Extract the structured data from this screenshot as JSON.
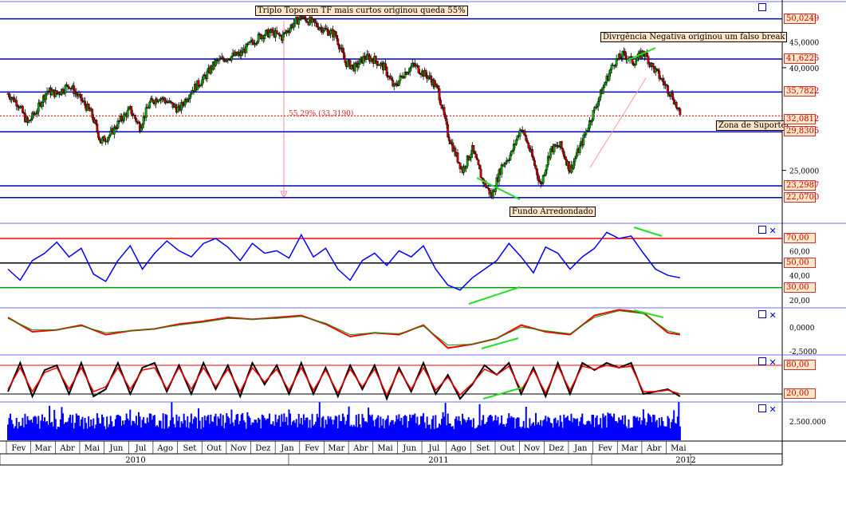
{
  "chart_data": {
    "type": "candlestick",
    "annotations": {
      "triple_top": "Triplo Topo em TF mais curtos originou queda 55%",
      "divergence": "Divrgência Negativa originou um falso break",
      "support_zone": "Zona de Suporte",
      "rounded_bottom": "Fundo Arredondado",
      "drop_pct": "55,29% (33,3190)"
    },
    "price_panel": {
      "y_scale": "log",
      "y_range": [
        20.5,
        52
      ],
      "horizontal_levels": [
        50.0249,
        41.6225,
        35.7822,
        29.8305,
        23.2987,
        22.07
      ],
      "level_labels": [
        "50,0249",
        "41,6225",
        "35,7822",
        "29,8305",
        "23,2987",
        "22,0700"
      ],
      "dotted_level": 32.0812,
      "dotted_label": "32,0812",
      "axis_ticks": [
        45,
        40,
        25
      ],
      "axis_tick_labels": [
        "45,0000",
        "40,0000",
        "25,0000"
      ],
      "close_series": {
        "x_months": [
          0.0,
          0.4,
          0.8,
          1.2,
          1.6,
          2.0,
          2.5,
          3.0,
          3.4,
          3.8,
          4.2,
          4.6,
          5.0,
          5.4,
          5.8,
          6.2,
          6.6,
          7.0,
          7.5,
          8.0,
          8.5,
          9.0,
          9.5,
          10.0,
          10.4,
          10.8,
          11.2,
          11.6,
          12.0,
          12.5,
          13.0,
          13.4,
          13.8,
          14.2,
          14.6,
          15.0,
          15.4,
          15.8,
          16.2,
          16.6,
          17.0,
          17.3,
          17.6,
          18.0,
          18.3,
          18.6,
          19.0,
          19.4,
          19.8,
          20.2,
          20.6,
          21.0,
          21.4,
          21.8,
          22.2,
          22.6,
          23.0,
          23.5,
          24.0,
          24.4,
          24.8,
          25.2,
          25.6,
          26.0,
          26.4,
          26.8,
          27.2,
          27.5
        ],
        "close": [
          35.5,
          34.0,
          31.0,
          33.0,
          36.0,
          35.5,
          37.0,
          34.5,
          32.5,
          28.5,
          29.5,
          31.5,
          33.0,
          30.5,
          34.0,
          35.0,
          34.0,
          33.0,
          36.0,
          38.0,
          41.0,
          42.0,
          42.5,
          45.0,
          46.5,
          47.0,
          46.0,
          48.5,
          50.5,
          49.0,
          47.5,
          46.5,
          41.0,
          40.0,
          42.0,
          41.5,
          40.0,
          36.5,
          39.0,
          40.5,
          39.0,
          38.0,
          36.0,
          29.5,
          27.0,
          25.0,
          27.5,
          24.0,
          22.2,
          25.5,
          27.0,
          30.5,
          27.0,
          23.3,
          27.5,
          28.0,
          25.0,
          28.5,
          33.0,
          37.0,
          41.0,
          42.5,
          41.0,
          43.0,
          40.0,
          37.5,
          35.0,
          32.0
        ]
      }
    },
    "rsi_panel": {
      "levels": [
        70,
        50,
        30
      ],
      "level_labels": [
        "70,00",
        "50,00",
        "30,00"
      ],
      "tick_labels": [
        "60,00",
        "40,00",
        "20,00"
      ],
      "x_months": [
        0.0,
        0.5,
        1.0,
        1.5,
        2.0,
        2.5,
        3.0,
        3.5,
        4.0,
        4.5,
        5.0,
        5.5,
        6.0,
        6.5,
        7.0,
        7.5,
        8.0,
        8.5,
        9.0,
        9.5,
        10.0,
        10.5,
        11.0,
        11.5,
        12.0,
        12.5,
        13.0,
        13.5,
        14.0,
        14.5,
        15.0,
        15.5,
        16.0,
        16.5,
        17.0,
        17.5,
        18.0,
        18.5,
        19.0,
        19.5,
        20.0,
        20.5,
        21.0,
        21.5,
        22.0,
        22.5,
        23.0,
        23.5,
        24.0,
        24.5,
        25.0,
        25.5,
        26.0,
        26.5,
        27.0,
        27.5
      ],
      "values": [
        45,
        36,
        52,
        58,
        67,
        55,
        62,
        41,
        35,
        52,
        64,
        45,
        58,
        68,
        60,
        55,
        66,
        70,
        63,
        52,
        66,
        58,
        60,
        54,
        73,
        55,
        62,
        45,
        36,
        52,
        58,
        48,
        60,
        55,
        64,
        45,
        32,
        28,
        38,
        45,
        52,
        66,
        55,
        42,
        63,
        58,
        45,
        55,
        62,
        75,
        70,
        72,
        58,
        45,
        40,
        38
      ]
    },
    "macd_panel": {
      "tick_labels": [
        "0,0000",
        "-2,5000"
      ],
      "x_months": [
        0.0,
        1.0,
        2.0,
        3.0,
        4.0,
        5.0,
        6.0,
        7.0,
        8.0,
        9.0,
        10.0,
        11.0,
        12.0,
        13.0,
        14.0,
        15.0,
        16.0,
        17.0,
        18.0,
        19.0,
        20.0,
        21.0,
        22.0,
        23.0,
        24.0,
        25.0,
        26.0,
        27.0,
        27.5
      ],
      "macd": [
        1.0,
        -0.5,
        -0.3,
        0.2,
        -0.8,
        -0.4,
        -0.2,
        0.3,
        0.6,
        1.0,
        0.8,
        1.0,
        1.2,
        0.3,
        -1.0,
        -0.6,
        -0.8,
        0.2,
        -2.2,
        -1.8,
        -1.2,
        0.2,
        -0.5,
        -0.8,
        1.2,
        1.8,
        1.5,
        -0.6,
        -0.8
      ],
      "signal": [
        0.9,
        -0.3,
        -0.3,
        0.1,
        -0.6,
        -0.4,
        -0.2,
        0.2,
        0.5,
        0.9,
        0.8,
        0.9,
        1.1,
        0.4,
        -0.8,
        -0.6,
        -0.7,
        0.1,
        -1.9,
        -1.8,
        -1.2,
        0.0,
        -0.4,
        -0.7,
        1.0,
        1.7,
        1.4,
        -0.4,
        -0.7
      ]
    },
    "stochastic_panel": {
      "levels": [
        80,
        20
      ],
      "level_labels": [
        "80,00",
        "20,00"
      ],
      "x_months": [
        0.0,
        0.5,
        1.0,
        1.5,
        2.0,
        2.5,
        3.0,
        3.5,
        4.0,
        4.5,
        5.0,
        5.5,
        6.0,
        6.5,
        7.0,
        7.5,
        8.0,
        8.5,
        9.0,
        9.5,
        10.0,
        10.5,
        11.0,
        11.5,
        12.0,
        12.5,
        13.0,
        13.5,
        14.0,
        14.5,
        15.0,
        15.5,
        16.0,
        16.5,
        17.0,
        17.5,
        18.0,
        18.5,
        19.0,
        19.5,
        20.0,
        20.5,
        21.0,
        21.5,
        22.0,
        22.5,
        23.0,
        23.5,
        24.0,
        24.5,
        25.0,
        25.5,
        26.0,
        26.5,
        27.0,
        27.5
      ],
      "k": [
        25,
        85,
        15,
        70,
        80,
        20,
        85,
        15,
        30,
        85,
        20,
        75,
        85,
        25,
        80,
        20,
        85,
        30,
        80,
        15,
        85,
        40,
        80,
        20,
        85,
        20,
        75,
        15,
        80,
        30,
        80,
        10,
        75,
        25,
        85,
        20,
        60,
        10,
        40,
        80,
        60,
        85,
        20,
        75,
        15,
        85,
        20,
        85,
        70,
        85,
        75,
        85,
        20,
        25,
        30,
        15
      ],
      "d": [
        30,
        75,
        25,
        65,
        75,
        30,
        75,
        25,
        35,
        75,
        30,
        70,
        75,
        30,
        75,
        30,
        75,
        35,
        72,
        25,
        75,
        45,
        72,
        28,
        75,
        28,
        70,
        22,
        72,
        35,
        72,
        18,
        70,
        30,
        75,
        28,
        55,
        18,
        42,
        72,
        60,
        78,
        28,
        70,
        22,
        78,
        28,
        78,
        72,
        80,
        75,
        78,
        25,
        25,
        28,
        20
      ]
    },
    "volume_panel": {
      "tick_label": "2.500.000"
    },
    "x_axis": {
      "months": [
        "Fev",
        "Mar",
        "Abr",
        "Mai",
        "Jun",
        "Jul",
        "Ago",
        "Set",
        "Out",
        "Nov",
        "Dez",
        "Jan",
        "Fev",
        "Mar",
        "Abr",
        "Mai",
        "Jun",
        "Jul",
        "Ago",
        "Set",
        "Out",
        "Nov",
        "Dez",
        "Jan",
        "Fev",
        "Mar",
        "Abr",
        "Mai"
      ],
      "years": [
        "2010",
        "2011",
        "2012"
      ]
    }
  }
}
